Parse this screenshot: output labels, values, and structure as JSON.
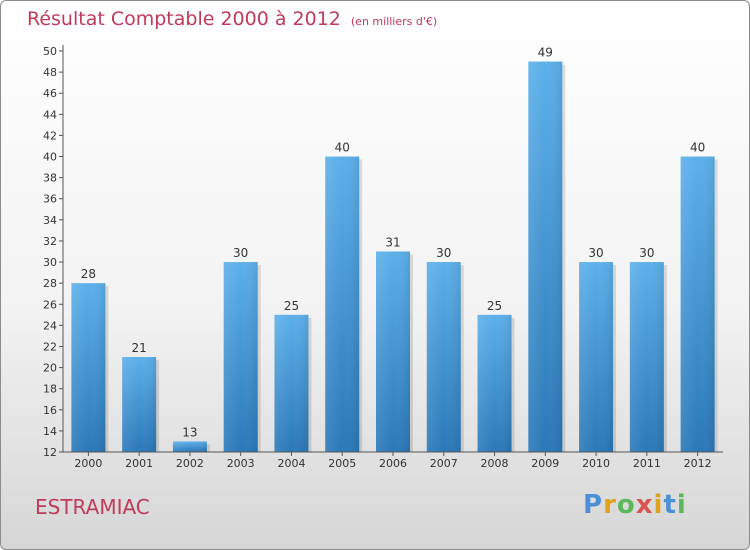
{
  "chart_data": {
    "type": "bar",
    "title": "Résultat Comptable 2000 à 2012",
    "subtitle": "(en milliers d'€)",
    "categories": [
      "2000",
      "2001",
      "2002",
      "2003",
      "2004",
      "2005",
      "2006",
      "2007",
      "2008",
      "2009",
      "2010",
      "2011",
      "2012"
    ],
    "values": [
      28,
      21,
      13,
      30,
      25,
      40,
      31,
      30,
      25,
      49,
      30,
      30,
      40
    ],
    "ylim": [
      12,
      50
    ],
    "yticks": [
      12,
      14,
      16,
      18,
      20,
      22,
      24,
      26,
      28,
      30,
      32,
      34,
      36,
      38,
      40,
      42,
      44,
      46,
      48,
      50
    ],
    "grid": false,
    "bar_color": "#3d8fd0"
  },
  "footer": {
    "commune": "ESTRAMIAC",
    "logo": "Proxiti"
  }
}
